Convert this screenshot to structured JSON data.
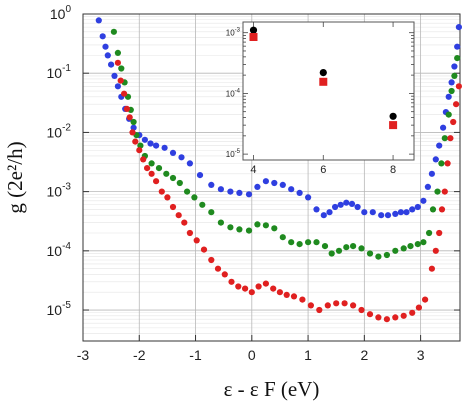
{
  "chart_data": [
    {
      "type": "scatter",
      "title": "",
      "xlabel": "ε - ε F (eV)",
      "ylabel": "g (2e²/h)",
      "xscale": "linear",
      "yscale": "log",
      "xlim": [
        -3,
        3.7
      ],
      "ylim": [
        3e-06,
        1
      ],
      "grid": true,
      "x_ticks": [
        "-3",
        "-2",
        "-1",
        "0",
        "1",
        "2",
        "3"
      ],
      "y_ticks": [
        {
          "base": "10",
          "exp": "0"
        },
        {
          "base": "10",
          "exp": "-1"
        },
        {
          "base": "10",
          "exp": "-2"
        },
        {
          "base": "10",
          "exp": "-3"
        },
        {
          "base": "10",
          "exp": "-4"
        },
        {
          "base": "10",
          "exp": "-5"
        }
      ],
      "series": [
        {
          "color": "#2f3fe0",
          "points": [
            [
              -2.72,
              0.78
            ],
            [
              -2.65,
              0.42
            ],
            [
              -2.6,
              0.28
            ],
            [
              -2.56,
              0.2
            ],
            [
              -2.5,
              0.14
            ],
            [
              -2.44,
              0.09
            ],
            [
              -2.38,
              0.06
            ],
            [
              -2.32,
              0.04
            ],
            [
              -2.25,
              0.025
            ],
            [
              -2.18,
              0.017
            ],
            [
              -2.1,
              0.012
            ],
            [
              -2.0,
              0.009
            ],
            [
              -1.9,
              0.0075
            ],
            [
              -1.8,
              0.0065
            ],
            [
              -1.7,
              0.006
            ],
            [
              -1.55,
              0.0055
            ],
            [
              -1.4,
              0.0045
            ],
            [
              -1.25,
              0.0038
            ],
            [
              -1.1,
              0.003
            ],
            [
              -0.92,
              0.0019
            ],
            [
              -0.72,
              0.0013
            ],
            [
              -0.55,
              0.0011
            ],
            [
              -0.38,
              0.001
            ],
            [
              -0.22,
              0.00095
            ],
            [
              -0.05,
              0.0009
            ],
            [
              0.1,
              0.0012
            ],
            [
              0.25,
              0.0015
            ],
            [
              0.4,
              0.0014
            ],
            [
              0.55,
              0.0013
            ],
            [
              0.7,
              0.0011
            ],
            [
              0.85,
              0.00095
            ],
            [
              1.0,
              0.0008
            ],
            [
              1.15,
              0.0005
            ],
            [
              1.28,
              0.0004
            ],
            [
              1.38,
              0.00045
            ],
            [
              1.48,
              0.00055
            ],
            [
              1.58,
              0.0006
            ],
            [
              1.68,
              0.00065
            ],
            [
              1.78,
              0.00062
            ],
            [
              1.88,
              0.00055
            ],
            [
              2.0,
              0.00045
            ],
            [
              2.15,
              0.00045
            ],
            [
              2.3,
              0.0004
            ],
            [
              2.42,
              0.0004
            ],
            [
              2.55,
              0.00042
            ],
            [
              2.65,
              0.00045
            ],
            [
              2.75,
              0.00045
            ],
            [
              2.85,
              0.0005
            ],
            [
              2.95,
              0.00055
            ],
            [
              3.05,
              0.0007
            ],
            [
              3.13,
              0.0012
            ],
            [
              3.2,
              0.002
            ],
            [
              3.27,
              0.0035
            ],
            [
              3.33,
              0.006
            ],
            [
              3.4,
              0.012
            ],
            [
              3.45,
              0.022
            ],
            [
              3.5,
              0.04
            ],
            [
              3.55,
              0.07
            ],
            [
              3.6,
              0.13
            ],
            [
              3.65,
              0.28
            ],
            [
              3.68,
              0.6
            ]
          ]
        },
        {
          "color": "#1f8a1f",
          "points": [
            [
              -2.45,
              0.5
            ],
            [
              -2.38,
              0.22
            ],
            [
              -2.32,
              0.12
            ],
            [
              -2.26,
              0.07
            ],
            [
              -2.2,
              0.04
            ],
            [
              -2.15,
              0.024
            ],
            [
              -2.1,
              0.015
            ],
            [
              -2.05,
              0.009
            ],
            [
              -1.98,
              0.006
            ],
            [
              -1.9,
              0.004
            ],
            [
              -1.78,
              0.003
            ],
            [
              -1.65,
              0.0025
            ],
            [
              -1.52,
              0.002
            ],
            [
              -1.4,
              0.0017
            ],
            [
              -1.28,
              0.0014
            ],
            [
              -1.15,
              0.001
            ],
            [
              -1.02,
              0.0008
            ],
            [
              -0.88,
              0.0006
            ],
            [
              -0.72,
              0.00045
            ],
            [
              -0.55,
              0.0003
            ],
            [
              -0.38,
              0.00025
            ],
            [
              -0.22,
              0.00023
            ],
            [
              -0.05,
              0.00022
            ],
            [
              0.1,
              0.00028
            ],
            [
              0.25,
              0.00027
            ],
            [
              0.4,
              0.00024
            ],
            [
              0.55,
              0.00017
            ],
            [
              0.7,
              0.00014
            ],
            [
              0.85,
              0.00013
            ],
            [
              1.0,
              0.00014
            ],
            [
              1.15,
              0.00014
            ],
            [
              1.3,
              0.00012
            ],
            [
              1.42,
              9e-05
            ],
            [
              1.55,
              0.0001
            ],
            [
              1.68,
              0.000115
            ],
            [
              1.8,
              0.00012
            ],
            [
              1.95,
              0.00011
            ],
            [
              2.1,
              9e-05
            ],
            [
              2.25,
              8e-05
            ],
            [
              2.4,
              8.5e-05
            ],
            [
              2.55,
              0.0001
            ],
            [
              2.7,
              0.00011
            ],
            [
              2.82,
              0.00012
            ],
            [
              2.95,
              0.00013
            ],
            [
              3.05,
              0.00014
            ],
            [
              3.15,
              0.0002
            ],
            [
              3.22,
              0.0005
            ],
            [
              3.3,
              0.001
            ],
            [
              3.37,
              0.003
            ],
            [
              3.43,
              0.008
            ],
            [
              3.5,
              0.02
            ],
            [
              3.55,
              0.05
            ],
            [
              3.6,
              0.09
            ],
            [
              3.65,
              0.18
            ]
          ]
        },
        {
          "color": "#e02020",
          "points": [
            [
              -2.38,
              0.15
            ],
            [
              -2.33,
              0.075
            ],
            [
              -2.27,
              0.045
            ],
            [
              -2.22,
              0.025
            ],
            [
              -2.17,
              0.018
            ],
            [
              -2.12,
              0.01
            ],
            [
              -2.07,
              0.007
            ],
            [
              -2.0,
              0.005
            ],
            [
              -1.93,
              0.0035
            ],
            [
              -1.86,
              0.0025
            ],
            [
              -1.78,
              0.002
            ],
            [
              -1.7,
              0.0015
            ],
            [
              -1.6,
              0.001
            ],
            [
              -1.5,
              0.0008
            ],
            [
              -1.4,
              0.00055
            ],
            [
              -1.3,
              0.0004
            ],
            [
              -1.2,
              0.0003
            ],
            [
              -1.1,
              0.0002
            ],
            [
              -0.98,
              0.00015
            ],
            [
              -0.85,
              0.000105
            ],
            [
              -0.72,
              7e-05
            ],
            [
              -0.6,
              5e-05
            ],
            [
              -0.48,
              4e-05
            ],
            [
              -0.36,
              3e-05
            ],
            [
              -0.24,
              2.5e-05
            ],
            [
              -0.12,
              2.3e-05
            ],
            [
              0.0,
              2e-05
            ],
            [
              0.12,
              2.5e-05
            ],
            [
              0.25,
              2.8e-05
            ],
            [
              0.38,
              2.3e-05
            ],
            [
              0.5,
              2e-05
            ],
            [
              0.62,
              1.8e-05
            ],
            [
              0.75,
              1.7e-05
            ],
            [
              0.9,
              1.5e-05
            ],
            [
              1.05,
              1.2e-05
            ],
            [
              1.2,
              1e-05
            ],
            [
              1.35,
              1.2e-05
            ],
            [
              1.5,
              1.3e-05
            ],
            [
              1.65,
              1.3e-05
            ],
            [
              1.8,
              1.2e-05
            ],
            [
              1.95,
              1e-05
            ],
            [
              2.1,
              8.5e-06
            ],
            [
              2.25,
              7.5e-06
            ],
            [
              2.4,
              7e-06
            ],
            [
              2.55,
              7.5e-06
            ],
            [
              2.7,
              8e-06
            ],
            [
              2.85,
              9e-06
            ],
            [
              2.97,
              1.1e-05
            ],
            [
              3.08,
              1.5e-05
            ],
            [
              3.2,
              5e-05
            ],
            [
              3.27,
              0.0001
            ],
            [
              3.33,
              0.0002
            ],
            [
              3.38,
              0.0005
            ],
            [
              3.43,
              0.001
            ],
            [
              3.48,
              0.003
            ],
            [
              3.53,
              0.008
            ],
            [
              3.58,
              0.015
            ],
            [
              3.63,
              0.03
            ],
            [
              3.68,
              0.06
            ]
          ]
        }
      ]
    },
    {
      "type": "scatter",
      "title": "",
      "xlabel": "",
      "ylabel": "",
      "xscale": "linear",
      "yscale": "log",
      "xlim": [
        3.7,
        8.6
      ],
      "ylim": [
        8e-06,
        0.0015
      ],
      "grid": false,
      "x_ticks": [
        "4",
        "6",
        "8"
      ],
      "y_ticks": [
        {
          "base": "10",
          "exp": "-3"
        },
        {
          "base": "10",
          "exp": "-4"
        },
        {
          "base": "10",
          "exp": "-5"
        }
      ],
      "series": [
        {
          "color": "#000000",
          "marker": "circle",
          "points": [
            [
              4,
              0.0011
            ],
            [
              6,
              0.00022
            ],
            [
              8,
              4.2e-05
            ]
          ]
        },
        {
          "color": "#e02020",
          "marker": "square",
          "points": [
            [
              4,
              0.00085
            ],
            [
              6,
              0.000155
            ],
            [
              8,
              3e-05
            ]
          ]
        }
      ]
    }
  ]
}
